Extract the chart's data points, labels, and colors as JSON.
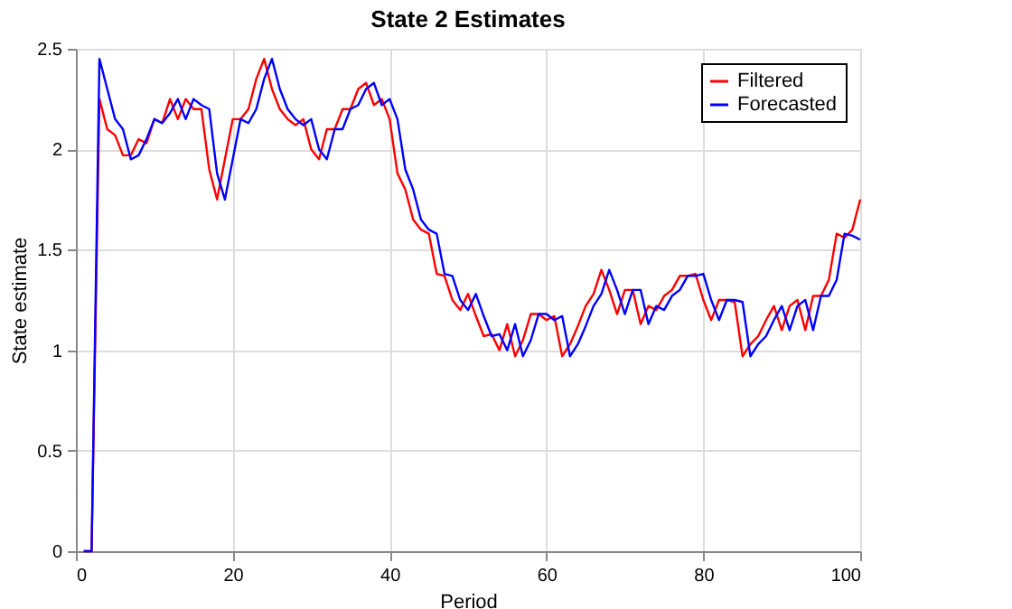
{
  "chart_data": {
    "type": "line",
    "title": "State 2 Estimates",
    "xlabel": "Period",
    "ylabel": "State estimate",
    "x": [
      1,
      2,
      3,
      4,
      5,
      6,
      7,
      8,
      9,
      10,
      11,
      12,
      13,
      14,
      15,
      16,
      17,
      18,
      19,
      20,
      21,
      22,
      23,
      24,
      25,
      26,
      27,
      28,
      29,
      30,
      31,
      32,
      33,
      34,
      35,
      36,
      37,
      38,
      39,
      40,
      41,
      42,
      43,
      44,
      45,
      46,
      47,
      48,
      49,
      50,
      51,
      52,
      53,
      54,
      55,
      56,
      57,
      58,
      59,
      60,
      61,
      62,
      63,
      64,
      65,
      66,
      67,
      68,
      69,
      70,
      71,
      72,
      73,
      74,
      75,
      76,
      77,
      78,
      79,
      80,
      81,
      82,
      83,
      84,
      85,
      86,
      87,
      88,
      89,
      90,
      91,
      92,
      93,
      94,
      95,
      96,
      97,
      98,
      99,
      100
    ],
    "series": [
      {
        "name": "Filtered",
        "color": "#ff0000",
        "values": [
          0,
          0,
          2.25,
          2.1,
          2.07,
          1.97,
          1.97,
          2.05,
          2.03,
          2.15,
          2.13,
          2.25,
          2.15,
          2.25,
          2.2,
          2.2,
          1.9,
          1.75,
          1.95,
          2.15,
          2.15,
          2.2,
          2.35,
          2.45,
          2.3,
          2.2,
          2.15,
          2.12,
          2.15,
          2.0,
          1.95,
          2.1,
          2.1,
          2.2,
          2.2,
          2.3,
          2.33,
          2.22,
          2.25,
          2.15,
          1.88,
          1.8,
          1.65,
          1.6,
          1.58,
          1.38,
          1.37,
          1.25,
          1.2,
          1.28,
          1.17,
          1.07,
          1.08,
          1.0,
          1.13,
          0.97,
          1.05,
          1.18,
          1.18,
          1.15,
          1.17,
          0.97,
          1.03,
          1.12,
          1.22,
          1.28,
          1.4,
          1.3,
          1.18,
          1.3,
          1.3,
          1.13,
          1.22,
          1.2,
          1.27,
          1.3,
          1.37,
          1.37,
          1.38,
          1.25,
          1.15,
          1.25,
          1.25,
          1.24,
          0.97,
          1.03,
          1.07,
          1.15,
          1.22,
          1.1,
          1.22,
          1.25,
          1.1,
          1.27,
          1.27,
          1.35,
          1.58,
          1.56,
          1.6,
          1.75
        ]
      },
      {
        "name": "Forecasted",
        "color": "#0000ff",
        "values": [
          0,
          0,
          2.45,
          2.3,
          2.15,
          2.1,
          1.95,
          1.97,
          2.05,
          2.15,
          2.13,
          2.18,
          2.25,
          2.15,
          2.25,
          2.22,
          2.2,
          1.88,
          1.75,
          1.95,
          2.15,
          2.13,
          2.2,
          2.35,
          2.45,
          2.3,
          2.2,
          2.15,
          2.12,
          2.15,
          2.0,
          1.95,
          2.1,
          2.1,
          2.2,
          2.22,
          2.3,
          2.33,
          2.22,
          2.25,
          2.15,
          1.9,
          1.8,
          1.65,
          1.6,
          1.58,
          1.38,
          1.37,
          1.25,
          1.2,
          1.28,
          1.17,
          1.07,
          1.08,
          1.0,
          1.13,
          0.97,
          1.05,
          1.18,
          1.18,
          1.15,
          1.17,
          0.97,
          1.03,
          1.12,
          1.22,
          1.28,
          1.4,
          1.3,
          1.18,
          1.3,
          1.3,
          1.13,
          1.22,
          1.2,
          1.27,
          1.3,
          1.37,
          1.37,
          1.38,
          1.25,
          1.15,
          1.25,
          1.25,
          1.24,
          0.97,
          1.03,
          1.07,
          1.15,
          1.22,
          1.1,
          1.22,
          1.25,
          1.1,
          1.27,
          1.27,
          1.35,
          1.58,
          1.57,
          1.55
        ]
      }
    ],
    "xlim": [
      0,
      100
    ],
    "xticks": [
      0,
      20,
      40,
      60,
      80,
      100
    ],
    "ylim": [
      0,
      2.5
    ],
    "yticks": [
      0,
      0.5,
      1,
      1.5,
      2,
      2.5
    ],
    "grid": true,
    "legend": "top right",
    "marker": "none",
    "line_style": "solid"
  }
}
